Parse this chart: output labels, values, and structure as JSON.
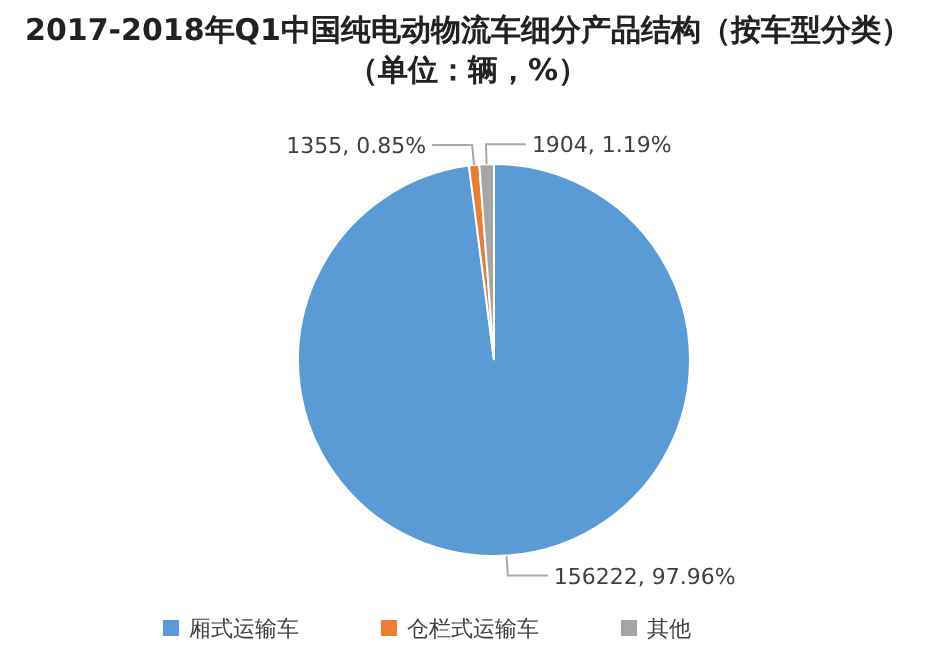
{
  "chart_data": {
    "type": "pie",
    "title": "2017-2018年Q1中国纯电动物流车细分产品结构（按车型分类）",
    "subtitle": "（单位：辆，%）",
    "categories": [
      "厢式运输车",
      "仓栏式运输车",
      "其他"
    ],
    "values": [
      156222,
      1355,
      1904
    ],
    "value_labels": [
      "156222, 97.96%",
      "1355, 0.85%",
      "1904, 1.19%"
    ],
    "colors": [
      "#5b9bd5",
      "#ed7d31",
      "#a5a5a5"
    ],
    "legend": "bottom"
  }
}
